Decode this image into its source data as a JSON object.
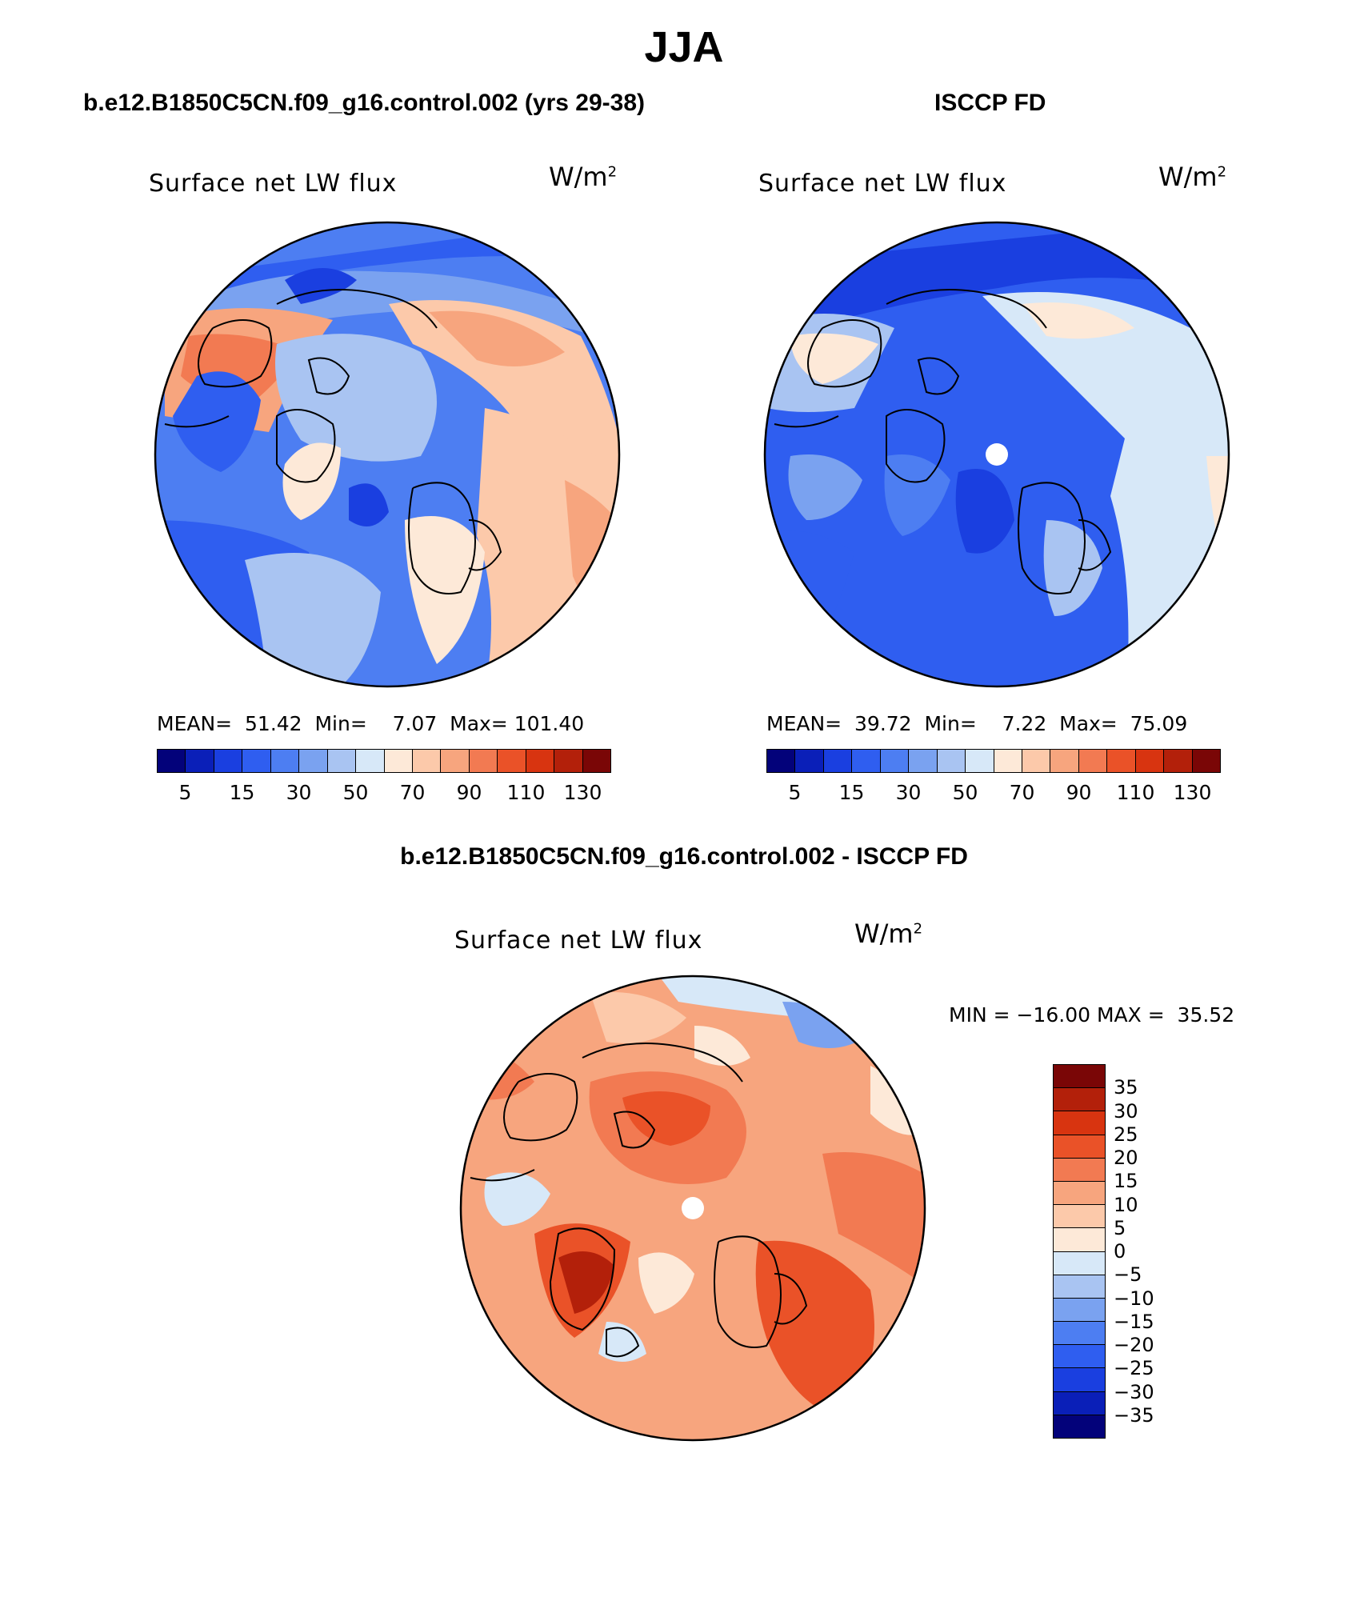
{
  "figure": {
    "season": "JJA",
    "panels": [
      {
        "id": "model",
        "title": "b.e12.B1850C5CN.f09_g16.control.002 (yrs 29-38)",
        "variable": "Surface net LW flux",
        "units_base": "W/m",
        "units_exp": "2",
        "stats": "MEAN=  51.42  Min=    7.07  Max= 101.40"
      },
      {
        "id": "obs",
        "title": "ISCCP FD",
        "variable": "Surface net LW flux",
        "units_base": "W/m",
        "units_exp": "2",
        "stats": "MEAN=  39.72  Min=    7.22  Max=  75.09"
      },
      {
        "id": "diff",
        "title": "b.e12.B1850C5CN.f09_g16.control.002 - ISCCP FD",
        "variable": "Surface net LW flux",
        "units_base": "W/m",
        "units_exp": "2",
        "stats": "MIN = −16.00 MAX =  35.52"
      }
    ],
    "abs_colorbar": {
      "colors": [
        "#03027a",
        "#0a1fb8",
        "#1a3fe0",
        "#2f5ef0",
        "#4d7ef2",
        "#7aa2f0",
        "#a9c4f2",
        "#d7e8f8",
        "#fde9d8",
        "#fcc9aa",
        "#f7a57e",
        "#f27a52",
        "#ea5228",
        "#d83410",
        "#b3200a",
        "#7a0606"
      ],
      "tick_labels": [
        "5",
        "15",
        "30",
        "50",
        "70",
        "90",
        "110",
        "130"
      ]
    },
    "diff_colorbar": {
      "colors_top_to_bottom": [
        "#7a0606",
        "#b3200a",
        "#d83410",
        "#ea5228",
        "#f27a52",
        "#f7a57e",
        "#fcc9aa",
        "#fde9d8",
        "#d7e8f8",
        "#a9c4f2",
        "#7aa2f0",
        "#4d7ef2",
        "#2f5ef0",
        "#1a3fe0",
        "#0a1fb8",
        "#03027a"
      ],
      "tick_labels": [
        "35",
        "30",
        "25",
        "20",
        "15",
        "10",
        "5",
        "0",
        "−5",
        "−10",
        "−15",
        "−20",
        "−25",
        "−30",
        "−35"
      ]
    },
    "icons": [
      "polar-stereographic-map",
      "north-pole-missing-data-marker"
    ]
  }
}
